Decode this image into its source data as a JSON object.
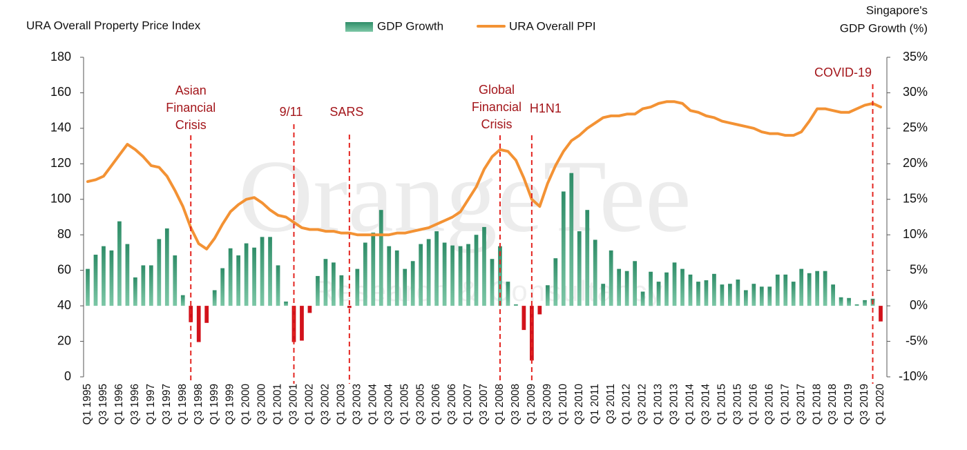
{
  "chart_data": {
    "type": "bar-line",
    "title": "URA Overall Property Price Index",
    "y2_title": [
      "Singapore's",
      "GDP Growth (%)"
    ],
    "watermark": "OrangeTee",
    "watermark_subtitle": "Research & Consultancy",
    "categories": [
      "Q1 1995",
      null,
      "Q3 1995",
      null,
      "Q1 1996",
      null,
      "Q3 1996",
      null,
      "Q1 1997",
      null,
      "Q3 1997",
      null,
      "Q1 1998",
      null,
      "Q3 1998",
      null,
      "Q1 1999",
      null,
      "Q3 1999",
      null,
      "Q1 2000",
      null,
      "Q3 2000",
      null,
      "Q1 2001",
      null,
      "Q3 2001",
      null,
      "Q1 2002",
      null,
      "Q3 2002",
      null,
      "Q1 2003",
      null,
      "Q3 2003",
      null,
      "Q1 2004",
      null,
      "Q3 2004",
      null,
      "Q1 2005",
      null,
      "Q3 2005",
      null,
      "Q1 2006",
      null,
      "Q3 2006",
      null,
      "Q1 2007",
      null,
      "Q3 2007",
      null,
      "Q1 2008",
      null,
      "Q3 2008",
      null,
      "Q1 2009",
      null,
      "Q3 2009",
      null,
      "Q1 2010",
      null,
      "Q3 2010",
      null,
      "Q1 2011",
      null,
      "Q3 2011",
      null,
      "Q1 2012",
      null,
      "Q3 2012",
      null,
      "Q1 2013",
      null,
      "Q3 2013",
      null,
      "Q1 2014",
      null,
      "Q3 2014",
      null,
      "Q1 2015",
      null,
      "Q3 2015",
      null,
      "Q1 2016",
      null,
      "Q3 2016",
      null,
      "Q1 2017",
      null,
      "Q3 2017",
      null,
      "Q1 2018",
      null,
      "Q3 2018",
      null,
      "Q1 2019",
      null,
      "Q3 2019",
      null,
      "Q1 2020"
    ],
    "series": [
      {
        "name": "GDP Growth",
        "type": "bar",
        "axis": "y2",
        "color": "#3a9e78",
        "negative_color": "#d2121b",
        "values": [
          5.2,
          7.2,
          8.4,
          7.8,
          11.9,
          8.7,
          4.0,
          5.7,
          5.7,
          9.4,
          10.9,
          7.1,
          1.5,
          -2.3,
          -5.1,
          -2.4,
          2.2,
          5.3,
          8.1,
          7.1,
          8.8,
          8.2,
          9.7,
          9.7,
          5.7,
          0.6,
          -5.1,
          -4.9,
          -1.0,
          4.2,
          6.6,
          6.1,
          4.3,
          -0.3,
          5.2,
          8.9,
          10.3,
          13.5,
          8.4,
          7.8,
          5.2,
          6.3,
          8.7,
          9.4,
          10.5,
          8.9,
          8.5,
          8.4,
          8.7,
          10.0,
          11.1,
          6.6,
          8.4,
          3.4,
          0.2,
          -3.4,
          -7.7,
          -1.2,
          2.9,
          6.7,
          16.1,
          18.7,
          10.5,
          13.5,
          9.3,
          3.1,
          7.8,
          5.2,
          4.9,
          6.3,
          2.0,
          4.8,
          3.4,
          4.7,
          6.1,
          5.2,
          4.4,
          3.4,
          3.6,
          4.5,
          3.0,
          3.1,
          3.7,
          2.2,
          3.1,
          2.7,
          2.7,
          4.4,
          4.4,
          3.4,
          5.2,
          4.6,
          4.9,
          4.9,
          3.0,
          1.2,
          1.1,
          0.2,
          0.8,
          1.0,
          -2.2
        ]
      },
      {
        "name": "URA Overall PPI",
        "type": "line",
        "axis": "y",
        "color": "#f39234",
        "values": [
          110,
          111,
          113,
          119,
          125,
          131,
          128,
          124,
          119,
          118,
          113,
          105,
          96,
          84,
          75,
          72,
          78,
          86,
          93,
          97,
          100,
          101,
          98,
          94,
          91,
          90,
          87,
          84,
          83,
          83,
          82,
          82,
          81,
          81,
          80,
          80,
          80,
          80,
          80,
          81,
          81,
          82,
          83,
          84,
          86,
          88,
          90,
          93,
          100,
          107,
          117,
          124,
          128,
          127,
          122,
          112,
          100,
          96,
          109,
          119,
          127,
          133,
          136,
          140,
          143,
          146,
          147,
          147,
          148,
          148,
          151,
          152,
          154,
          155,
          155,
          154,
          150,
          149,
          147,
          146,
          144,
          143,
          142,
          141,
          140,
          138,
          137,
          137,
          136,
          136,
          138,
          144,
          151,
          151,
          150,
          149,
          149,
          151,
          153,
          154,
          152
        ]
      }
    ],
    "annotations": [
      {
        "text": [
          "Asian",
          "Financial",
          "Crisis"
        ],
        "at": 13
      },
      {
        "text": [
          "9/11"
        ],
        "at": 26
      },
      {
        "text": [
          "SARS"
        ],
        "at": 33
      },
      {
        "text": [
          "Global",
          "Financial",
          "Crisis"
        ],
        "at": 52
      },
      {
        "text": [
          "H1N1"
        ],
        "at": 56
      },
      {
        "text": [
          "COVID-19"
        ],
        "at": 99
      }
    ],
    "annotation_color": "#a3151a",
    "annotation_line_color": "#e3241f",
    "ylim": [
      0,
      180
    ],
    "yticks": [
      0,
      20,
      40,
      60,
      80,
      100,
      120,
      140,
      160,
      180
    ],
    "y2lim": [
      -10,
      35
    ],
    "y2ticks": [
      {
        "value": -10,
        "label": "-10%"
      },
      {
        "value": -5,
        "label": "-5%"
      },
      {
        "value": 0,
        "label": "0%"
      },
      {
        "value": 5,
        "label": "5%"
      },
      {
        "value": 10,
        "label": "10%"
      },
      {
        "value": 15,
        "label": "15%"
      },
      {
        "value": 20,
        "label": "20%"
      },
      {
        "value": 25,
        "label": "25%"
      },
      {
        "value": 30,
        "label": "30%"
      },
      {
        "value": 35,
        "label": "35%"
      }
    ],
    "grid": false
  }
}
